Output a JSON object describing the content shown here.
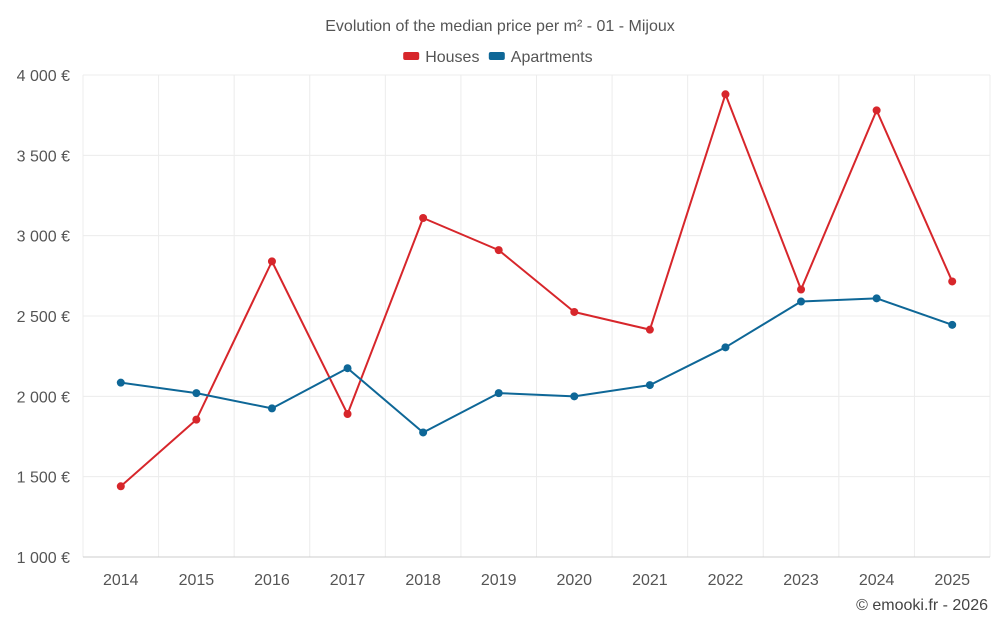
{
  "chart_data": {
    "type": "line",
    "title": "Evolution of the median price per m² - 01 - Mijoux",
    "xlabel": "",
    "ylabel": "",
    "categories": [
      "2014",
      "2015",
      "2016",
      "2017",
      "2018",
      "2019",
      "2020",
      "2021",
      "2022",
      "2023",
      "2024",
      "2025"
    ],
    "ylim": [
      1000,
      4000
    ],
    "yticks": [
      1000,
      1500,
      2000,
      2500,
      3000,
      3500,
      4000
    ],
    "ytick_labels": [
      "1 000 €",
      "1 500 €",
      "2 000 €",
      "2 500 €",
      "3 000 €",
      "3 500 €",
      "4 000 €"
    ],
    "grid": true,
    "legend_position": "top-center",
    "series": [
      {
        "name": "Houses",
        "color": "#d7262b",
        "values": [
          1440,
          1855,
          2840,
          1890,
          3110,
          2910,
          2525,
          2415,
          3880,
          2665,
          3780,
          2715
        ]
      },
      {
        "name": "Apartments",
        "color": "#0e6797",
        "values": [
          2085,
          2020,
          1925,
          2175,
          1775,
          2020,
          2000,
          2070,
          2305,
          2590,
          2610,
          2445
        ]
      }
    ]
  },
  "credit": "© emooki.fr - 2026"
}
